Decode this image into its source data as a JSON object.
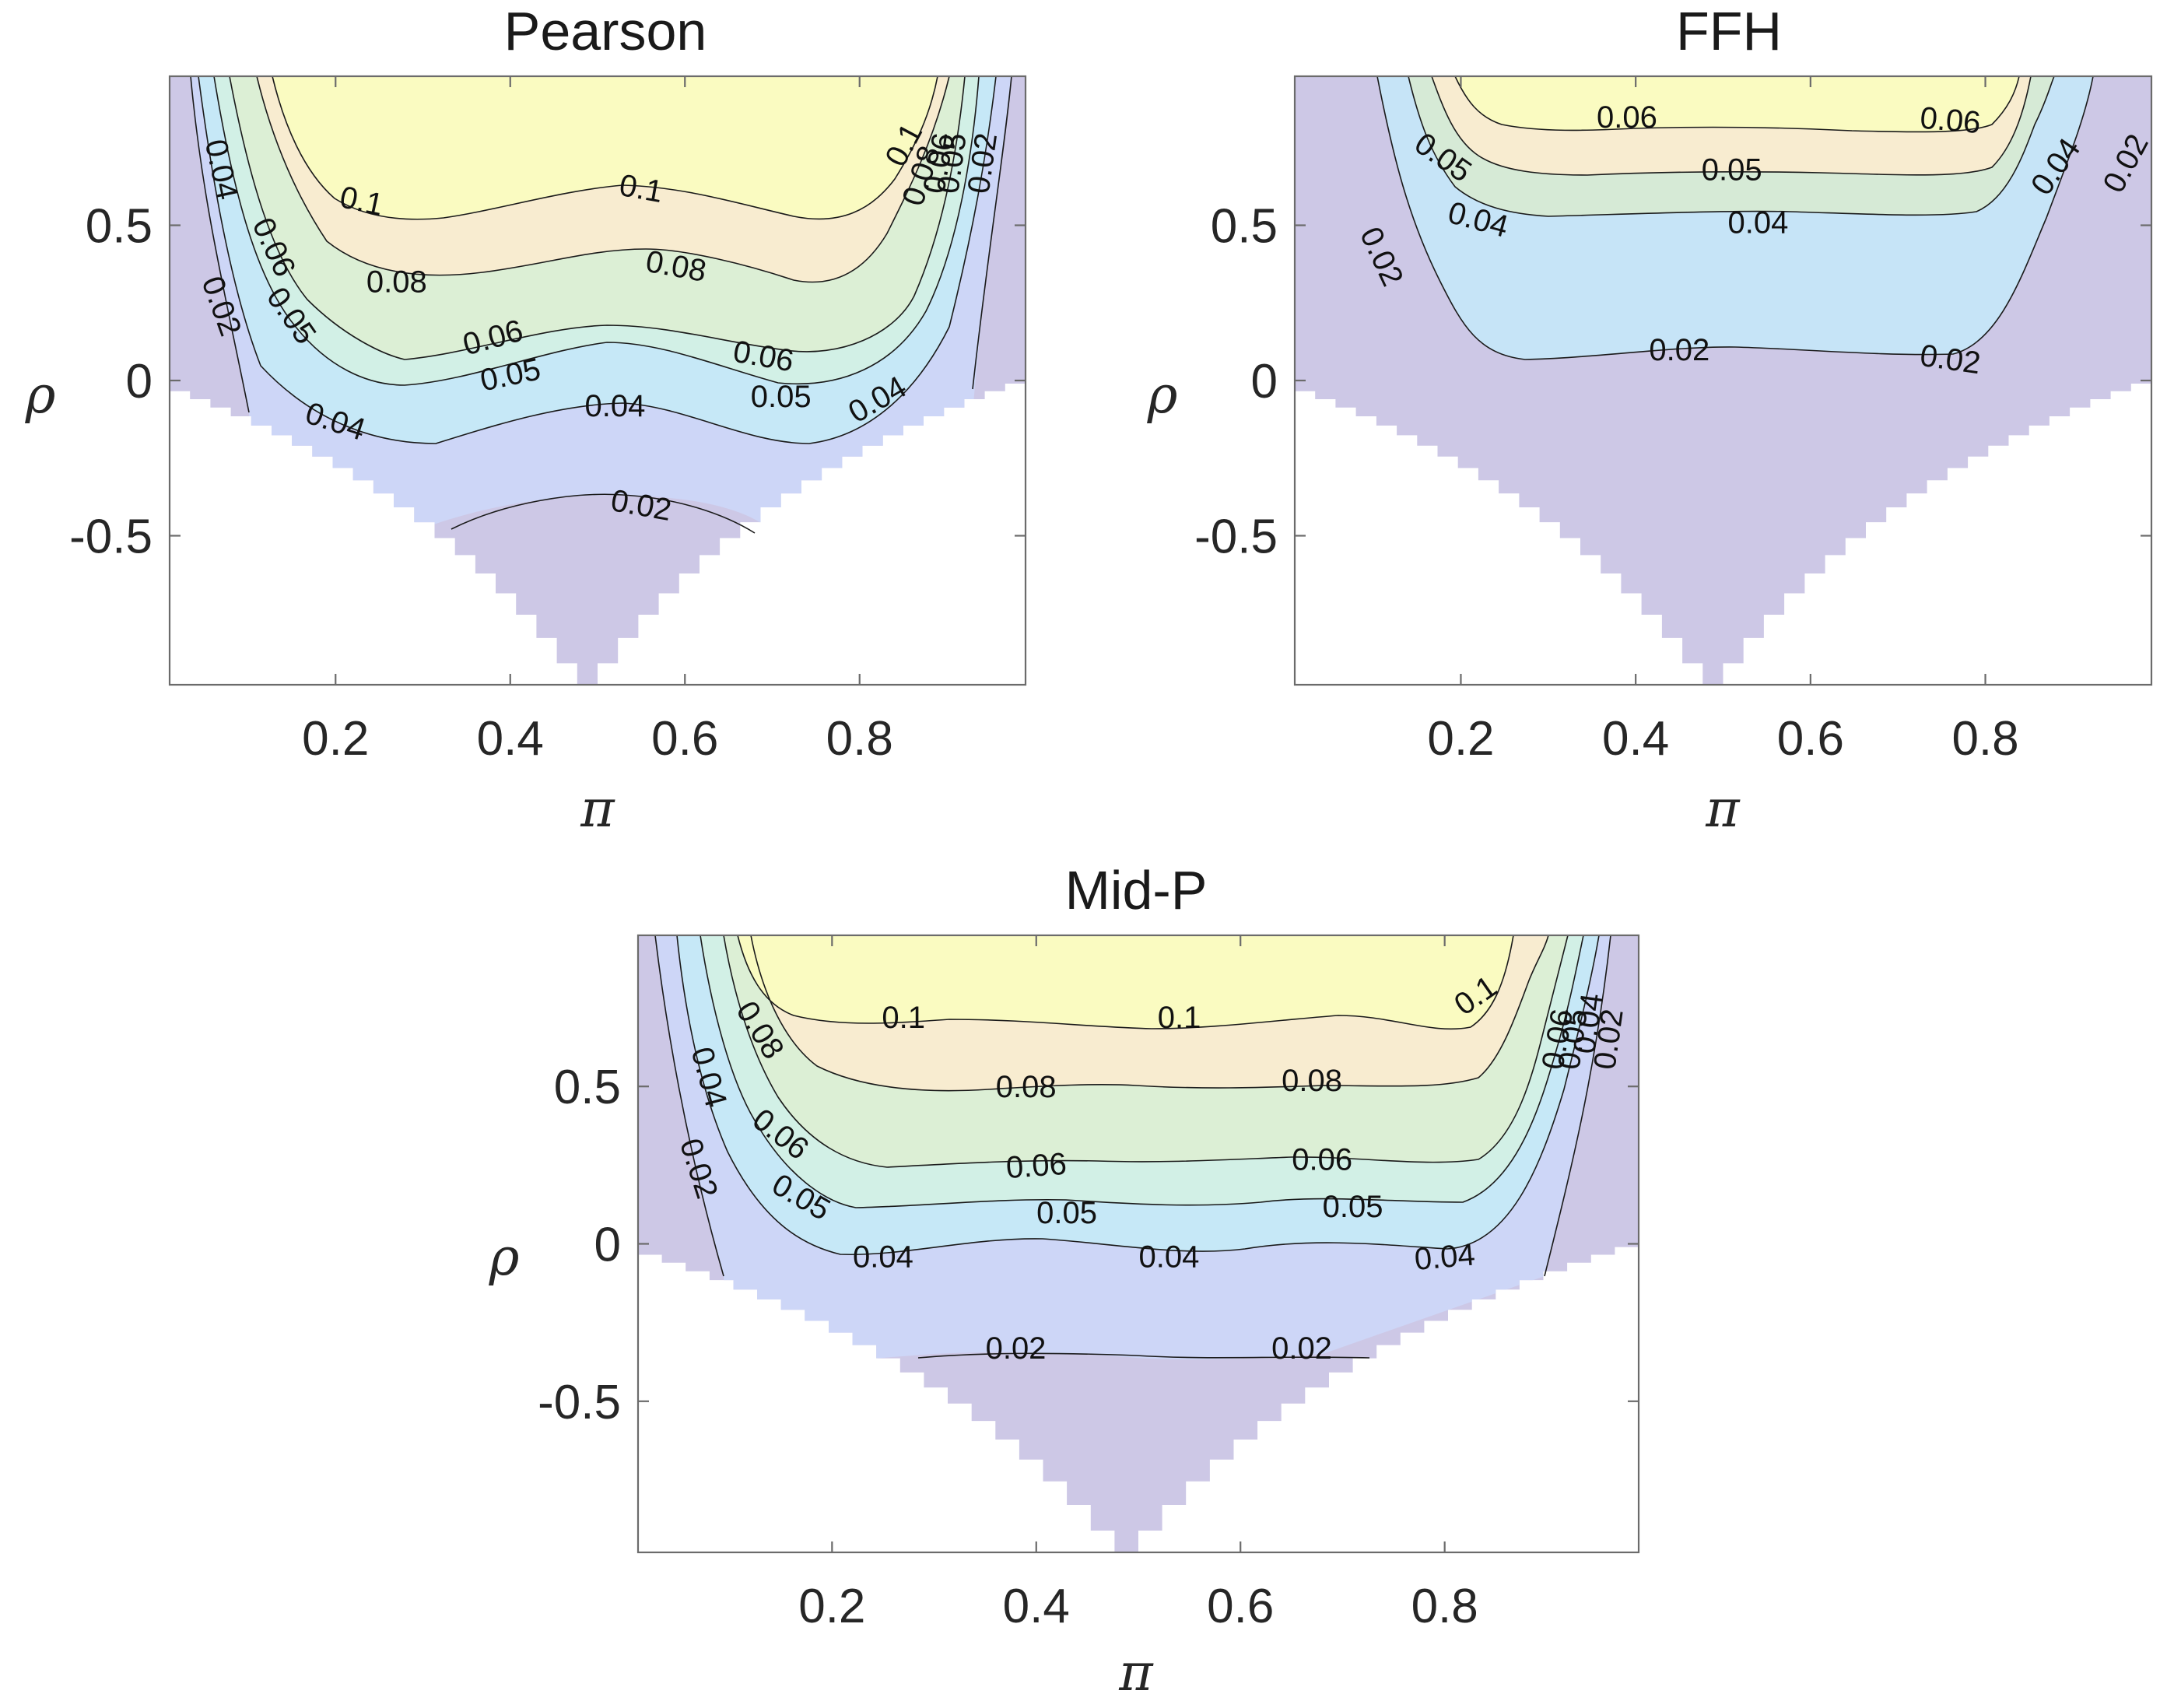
{
  "chart_data": [
    {
      "type": "contour",
      "title": "Pearson",
      "xlabel": "π",
      "ylabel": "ρ",
      "xlim": [
        0.01,
        0.99
      ],
      "ylim": [
        -0.98,
        0.98
      ],
      "xticks": [
        "0.2",
        "0.4",
        "0.6",
        "0.8"
      ],
      "yticks": [
        "0.5",
        "0",
        "-0.5"
      ],
      "levels": [
        0.02,
        0.04,
        0.05,
        0.06,
        0.08,
        0.1
      ],
      "contour_labels": [
        {
          "text": "0.1",
          "pi": 0.23,
          "rho": 0.58,
          "rot": 12
        },
        {
          "text": "0.1",
          "pi": 0.55,
          "rho": 0.62,
          "rot": 10
        },
        {
          "text": "0.1",
          "pi": 0.85,
          "rho": 0.76,
          "rot": -62
        },
        {
          "text": "0.08",
          "pi": 0.27,
          "rho": 0.32,
          "rot": 0
        },
        {
          "text": "0.08",
          "pi": 0.59,
          "rho": 0.37,
          "rot": 10
        },
        {
          "text": "0.08",
          "pi": 0.87,
          "rho": 0.66,
          "rot": -72
        },
        {
          "text": "0.06",
          "pi": 0.89,
          "rho": 0.7,
          "rot": -80
        },
        {
          "text": "0.05",
          "pi": 0.905,
          "rho": 0.7,
          "rot": -82
        },
        {
          "text": "0.02",
          "pi": 0.94,
          "rho": 0.7,
          "rot": -82
        },
        {
          "text": "0.04",
          "pi": 0.07,
          "rho": 0.68,
          "rot": 78
        },
        {
          "text": "0.02",
          "pi": 0.07,
          "rho": 0.24,
          "rot": 70
        },
        {
          "text": "0.06",
          "pi": 0.13,
          "rho": 0.43,
          "rot": 65
        },
        {
          "text": "0.05",
          "pi": 0.15,
          "rho": 0.21,
          "rot": 55
        },
        {
          "text": "0.06",
          "pi": 0.38,
          "rho": 0.14,
          "rot": -15
        },
        {
          "text": "0.06",
          "pi": 0.69,
          "rho": 0.08,
          "rot": 10
        },
        {
          "text": "0.05",
          "pi": 0.4,
          "rho": 0.02,
          "rot": -12
        },
        {
          "text": "0.05",
          "pi": 0.71,
          "rho": -0.05,
          "rot": 0
        },
        {
          "text": "0.04",
          "pi": 0.2,
          "rho": -0.13,
          "rot": 18
        },
        {
          "text": "0.04",
          "pi": 0.52,
          "rho": -0.08,
          "rot": 0
        },
        {
          "text": "0.04",
          "pi": 0.82,
          "rho": -0.06,
          "rot": -30
        },
        {
          "text": "0.02",
          "pi": 0.55,
          "rho": -0.4,
          "rot": 10
        }
      ]
    },
    {
      "type": "contour",
      "title": "FFH",
      "xlabel": "π",
      "ylabel": "ρ",
      "xlim": [
        0.01,
        0.99
      ],
      "ylim": [
        -0.98,
        0.98
      ],
      "xticks": [
        "0.2",
        "0.4",
        "0.6",
        "0.8"
      ],
      "yticks": [
        "0.5",
        "0",
        "-0.5"
      ],
      "levels": [
        0.02,
        0.04,
        0.05,
        0.06
      ],
      "contour_labels": [
        {
          "text": "0.06",
          "pi": 0.39,
          "rho": 0.85,
          "rot": 0
        },
        {
          "text": "0.06",
          "pi": 0.76,
          "rho": 0.84,
          "rot": 5
        },
        {
          "text": "0.05",
          "pi": 0.18,
          "rho": 0.72,
          "rot": 35
        },
        {
          "text": "0.05",
          "pi": 0.51,
          "rho": 0.68,
          "rot": 0
        },
        {
          "text": "0.04",
          "pi": 0.22,
          "rho": 0.52,
          "rot": 15
        },
        {
          "text": "0.04",
          "pi": 0.54,
          "rho": 0.51,
          "rot": 0
        },
        {
          "text": "0.04",
          "pi": 0.88,
          "rho": 0.69,
          "rot": -55
        },
        {
          "text": "0.02",
          "pi": 0.11,
          "rho": 0.4,
          "rot": 65
        },
        {
          "text": "0.02",
          "pi": 0.45,
          "rho": 0.1,
          "rot": 0
        },
        {
          "text": "0.02",
          "pi": 0.76,
          "rho": 0.07,
          "rot": 8
        },
        {
          "text": "0.02",
          "pi": 0.96,
          "rho": 0.7,
          "rot": -62
        }
      ]
    },
    {
      "type": "contour",
      "title": "Mid-P",
      "xlabel": "π",
      "ylabel": "ρ",
      "xlim": [
        0.01,
        0.99
      ],
      "ylim": [
        -0.98,
        0.98
      ],
      "xticks": [
        "0.2",
        "0.4",
        "0.6",
        "0.8"
      ],
      "yticks": [
        "0.5",
        "0",
        "-0.5"
      ],
      "levels": [
        0.02,
        0.04,
        0.05,
        0.06,
        0.08,
        0.1
      ],
      "contour_labels": [
        {
          "text": "0.1",
          "pi": 0.27,
          "rho": 0.72,
          "rot": 0
        },
        {
          "text": "0.1",
          "pi": 0.54,
          "rho": 0.72,
          "rot": 0
        },
        {
          "text": "0.1",
          "pi": 0.83,
          "rho": 0.79,
          "rot": -35
        },
        {
          "text": "0.08",
          "pi": 0.13,
          "rho": 0.68,
          "rot": 58
        },
        {
          "text": "0.08",
          "pi": 0.39,
          "rho": 0.5,
          "rot": 0
        },
        {
          "text": "0.08",
          "pi": 0.67,
          "rho": 0.52,
          "rot": 0
        },
        {
          "text": "0.06",
          "pi": 0.91,
          "rho": 0.65,
          "rot": -80
        },
        {
          "text": "0.05",
          "pi": 0.925,
          "rho": 0.65,
          "rot": -82
        },
        {
          "text": "0.04",
          "pi": 0.94,
          "rho": 0.7,
          "rot": -82
        },
        {
          "text": "0.02",
          "pi": 0.96,
          "rho": 0.65,
          "rot": -82
        },
        {
          "text": "0.04",
          "pi": 0.08,
          "rho": 0.53,
          "rot": 75
        },
        {
          "text": "0.02",
          "pi": 0.07,
          "rho": 0.24,
          "rot": 72
        },
        {
          "text": "0.06",
          "pi": 0.15,
          "rho": 0.35,
          "rot": 38
        },
        {
          "text": "0.05",
          "pi": 0.17,
          "rho": 0.15,
          "rot": 30
        },
        {
          "text": "0.06",
          "pi": 0.4,
          "rho": 0.25,
          "rot": -4
        },
        {
          "text": "0.06",
          "pi": 0.68,
          "rho": 0.27,
          "rot": 0
        },
        {
          "text": "0.05",
          "pi": 0.43,
          "rho": 0.1,
          "rot": 0
        },
        {
          "text": "0.05",
          "pi": 0.71,
          "rho": 0.12,
          "rot": 0
        },
        {
          "text": "0.04",
          "pi": 0.25,
          "rho": -0.04,
          "rot": 0
        },
        {
          "text": "0.04",
          "pi": 0.53,
          "rho": -0.04,
          "rot": 0
        },
        {
          "text": "0.04",
          "pi": 0.8,
          "rho": -0.04,
          "rot": -5
        },
        {
          "text": "0.02",
          "pi": 0.38,
          "rho": -0.33,
          "rot": 0
        },
        {
          "text": "0.02",
          "pi": 0.66,
          "rho": -0.33,
          "rot": 0
        }
      ]
    }
  ],
  "colors": {
    "band_low": "#cdc8e6",
    "band_004": "#cdd6f7",
    "band_005": "#c6e8f7",
    "band_006": "#d2f0e6",
    "band_008": "#dcefd5",
    "band_008b": "#f8ecd0",
    "band_top": "#fafbc1"
  }
}
